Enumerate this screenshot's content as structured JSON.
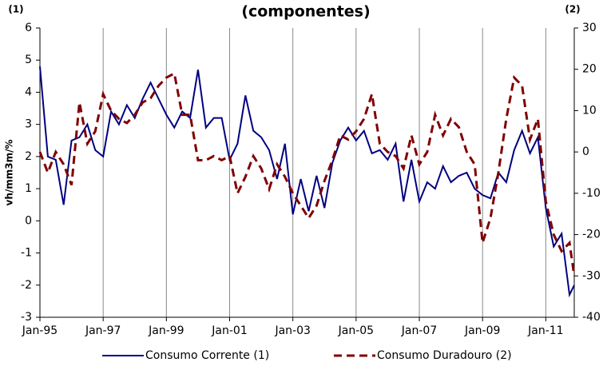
{
  "chart_data": {
    "type": "line",
    "title": "(componentes)",
    "annotations": [
      "(1)",
      "(2)"
    ],
    "ylabel": "vh/mm3m/%",
    "x": [
      1995.0,
      1995.25,
      1995.5,
      1995.75,
      1996.0,
      1996.25,
      1996.5,
      1996.75,
      1997.0,
      1997.25,
      1997.5,
      1997.75,
      1998.0,
      1998.25,
      1998.5,
      1998.75,
      1999.0,
      1999.25,
      1999.5,
      1999.75,
      2000.0,
      2000.25,
      2000.5,
      2000.75,
      2001.0,
      2001.25,
      2001.5,
      2001.75,
      2002.0,
      2002.25,
      2002.5,
      2002.75,
      2003.0,
      2003.25,
      2003.5,
      2003.75,
      2004.0,
      2004.25,
      2004.5,
      2004.75,
      2005.0,
      2005.25,
      2005.5,
      2005.75,
      2006.0,
      2006.25,
      2006.5,
      2006.75,
      2007.0,
      2007.25,
      2007.5,
      2007.75,
      2008.0,
      2008.25,
      2008.5,
      2008.75,
      2009.0,
      2009.25,
      2009.5,
      2009.75,
      2010.0,
      2010.25,
      2010.5,
      2010.75,
      2011.0,
      2011.25,
      2011.5,
      2011.75,
      2011.9
    ],
    "series": [
      {
        "name": "Consumo Corrente (1)",
        "color": "#000080",
        "axis": "y",
        "values": [
          4.8,
          2.0,
          1.9,
          0.5,
          2.5,
          2.6,
          3.0,
          2.2,
          2.0,
          3.4,
          3.0,
          3.6,
          3.2,
          3.8,
          4.3,
          3.8,
          3.3,
          2.9,
          3.4,
          3.2,
          4.7,
          2.9,
          3.2,
          3.2,
          1.9,
          2.4,
          3.9,
          2.8,
          2.6,
          2.2,
          1.3,
          2.4,
          0.2,
          1.3,
          0.3,
          1.4,
          0.4,
          1.8,
          2.5,
          2.9,
          2.5,
          2.8,
          2.1,
          2.2,
          1.9,
          2.4,
          0.6,
          1.9,
          0.6,
          1.2,
          1.0,
          1.7,
          1.2,
          1.4,
          1.5,
          1.0,
          0.8,
          0.7,
          1.5,
          1.2,
          2.2,
          2.8,
          2.1,
          2.6,
          0.4,
          -0.8,
          -0.4,
          -2.3,
          -2.0
        ]
      },
      {
        "name": "Consumo Duradouro (2)",
        "color": "#800000",
        "axis": "y2",
        "values": [
          0,
          -5,
          0,
          -3,
          -8,
          12,
          2,
          5,
          14,
          10,
          8,
          7,
          9,
          12,
          13,
          16,
          18,
          19,
          9,
          9,
          -2,
          -2,
          -1,
          -2,
          -1,
          -10,
          -6,
          -1,
          -4,
          -9,
          -3,
          -6,
          -10,
          -13,
          -16,
          -13,
          -7,
          -2,
          4,
          3,
          5,
          8,
          14,
          2,
          0,
          -1,
          -4,
          4,
          -3,
          0,
          9,
          4,
          8,
          6,
          0,
          -3,
          -22,
          -16,
          -5,
          8,
          18,
          16,
          3,
          8,
          -12,
          -20,
          -24,
          -22,
          -30
        ]
      }
    ],
    "xlim": [
      1995,
      2011.9
    ],
    "xticks": [
      {
        "value": 1995,
        "label": "Jan-95"
      },
      {
        "value": 1997,
        "label": "Jan-97"
      },
      {
        "value": 1999,
        "label": "Jan-99"
      },
      {
        "value": 2001,
        "label": "Jan-01"
      },
      {
        "value": 2003,
        "label": "Jan-03"
      },
      {
        "value": 2005,
        "label": "Jan-05"
      },
      {
        "value": 2007,
        "label": "Jan-07"
      },
      {
        "value": 2009,
        "label": "Jan-09"
      },
      {
        "value": 2011,
        "label": "Jan-11"
      }
    ],
    "ylim": [
      -3,
      6
    ],
    "yticks": [
      -3,
      -2,
      -1,
      0,
      1,
      2,
      3,
      4,
      5,
      6
    ],
    "y2lim": [
      -40,
      30
    ],
    "y2ticks": [
      -40,
      -30,
      -20,
      -10,
      0,
      10,
      20,
      30
    ],
    "grid": "x",
    "legend": "bottom"
  }
}
